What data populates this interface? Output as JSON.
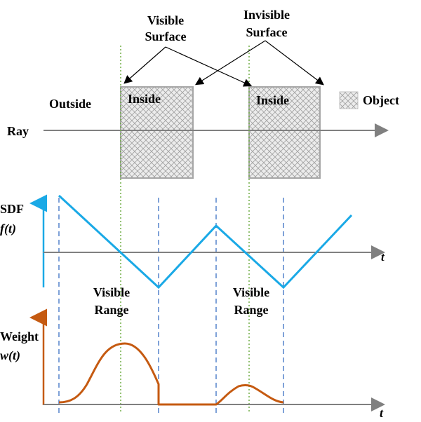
{
  "top": {
    "visible_surface": {
      "line1": "Visible",
      "line2": "Surface"
    },
    "invisible_surface": {
      "line1": "Invisible",
      "line2": "Surface"
    },
    "outside_label": "Outside",
    "inside_label_1": "Inside",
    "inside_label_2": "Inside",
    "legend_label": "Object",
    "ray_label": "Ray"
  },
  "sdf": {
    "ylabel_line1": "SDF",
    "ylabel_line2": "f(t)",
    "xlabel": "t"
  },
  "weight": {
    "ylabel_line1": "Weight",
    "ylabel_line2": "w(t)",
    "xlabel": "t"
  },
  "ranges": {
    "range_1": {
      "line1": "Visible",
      "line2": "Range"
    },
    "range_2": {
      "line1": "Visible",
      "line2": "Range"
    }
  },
  "colors": {
    "sdf_line": "#1aa9e6",
    "sdf_axis": "#1aa9e6",
    "weight_line": "#c55a11",
    "weight_axis": "#c55a11",
    "axis": "#808080",
    "dashed": "#3a6fc4",
    "dotted": "#70ad47",
    "box_border": "#a6a6a6",
    "box_fill": "#e4e4e4"
  }
}
